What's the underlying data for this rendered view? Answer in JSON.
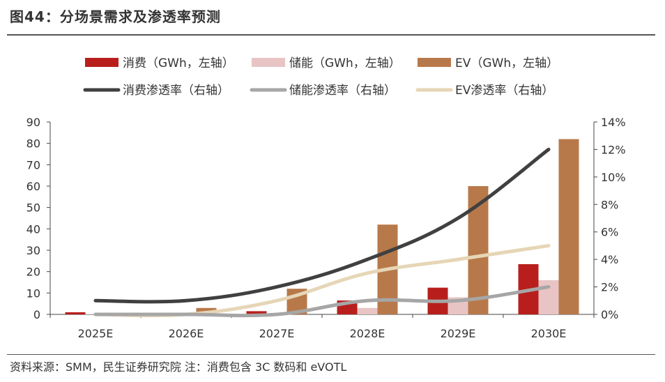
{
  "header": {
    "title": "图44：分场景需求及渗透率预测"
  },
  "footer": {
    "source": "资料来源：SMM，民生证券研究院  注：消费包含 3C 数码和 eVOTL"
  },
  "chart_data": {
    "type": "bar",
    "categories": [
      "2025E",
      "2026E",
      "2027E",
      "2028E",
      "2029E",
      "2030E"
    ],
    "ylim": [
      0,
      90
    ],
    "y_ticks": [
      "0",
      "10",
      "20",
      "30",
      "40",
      "50",
      "60",
      "70",
      "80",
      "90"
    ],
    "y2lim": [
      0,
      14
    ],
    "y2_ticks": [
      "0%",
      "2%",
      "4%",
      "6%",
      "8%",
      "10%",
      "12%",
      "14%"
    ],
    "bar_series": [
      {
        "name": "消费（GWh，左轴）",
        "color": "#b81f1c",
        "values": [
          1,
          0.5,
          1.5,
          6.5,
          12.5,
          23.5
        ]
      },
      {
        "name": "储能（GWh，左轴）",
        "color": "#e8c4c4",
        "values": [
          0.2,
          0.2,
          0.3,
          3,
          8,
          16
        ]
      },
      {
        "name": "EV（GWh，左轴）",
        "color": "#b8794a",
        "values": [
          0.3,
          3,
          12,
          42,
          60,
          82
        ]
      }
    ],
    "line_series": [
      {
        "name": "消费渗透率（右轴）",
        "color": "#404040",
        "values": [
          1,
          1,
          2,
          4,
          7,
          12
        ]
      },
      {
        "name": "储能渗透率（右轴）",
        "color": "#a6a6a6",
        "values": [
          0,
          0,
          0,
          1,
          1,
          2
        ]
      },
      {
        "name": "EV渗透率（右轴）",
        "color": "#e6d6b6",
        "values": [
          0,
          0,
          1,
          3,
          4,
          5
        ]
      }
    ],
    "legend_position": "top",
    "grid": false
  }
}
